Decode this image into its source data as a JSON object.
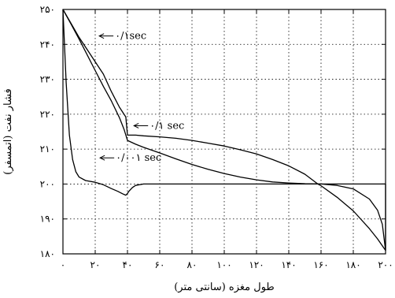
{
  "chart_data": {
    "type": "line",
    "title": "",
    "xlabel": "طول مغزه (سانتی متر)",
    "ylabel": "فشار نفت (اتمسفر)",
    "xlim": [
      0,
      200
    ],
    "ylim": [
      180,
      250
    ],
    "grid": true,
    "x_ticks": [
      0,
      20,
      40,
      60,
      80,
      100,
      120,
      140,
      160,
      180,
      200
    ],
    "x_tick_labels": [
      "۰",
      "۲۰",
      "۴۰",
      "۶۰",
      "۸۰",
      "۱۰۰",
      "۱۲۰",
      "۱۴۰",
      "۱۶۰",
      "۱۸۰",
      "۲۰۰"
    ],
    "y_ticks": [
      180,
      190,
      200,
      210,
      220,
      230,
      240,
      250
    ],
    "y_tick_labels": [
      "۱۸۰",
      "۱۹۰",
      "۲۰۰",
      "۲۱۰",
      "۲۲۰",
      "۲۳۰",
      "۲۴۰",
      "۲۵۰"
    ],
    "series": [
      {
        "name": "",
        "annotation": "۰/۰۰۱ sec",
        "color": "#000000",
        "x": [
          0,
          2,
          4,
          6,
          8,
          10,
          14,
          20,
          25,
          30,
          34,
          37,
          39,
          40,
          41,
          43,
          45,
          50,
          60,
          100,
          150,
          200
        ],
        "y": [
          250,
          229,
          214,
          207,
          203.5,
          202,
          201,
          200.5,
          199.8,
          198.7,
          197.9,
          197.2,
          196.8,
          197.3,
          198,
          199,
          199.6,
          200,
          200,
          200,
          200,
          200
        ]
      },
      {
        "name": "",
        "annotation": "۰/۱ sec",
        "color": "#000000",
        "x": [
          0,
          5,
          10,
          15,
          20,
          25,
          30,
          35,
          38,
          40,
          45,
          50,
          60,
          70,
          80,
          90,
          100,
          110,
          120,
          130,
          140,
          150,
          160,
          170,
          180,
          190,
          195,
          198,
          200
        ],
        "y": [
          250,
          245.8,
          241.5,
          237,
          232.5,
          228,
          223.8,
          219,
          215.5,
          212.5,
          211.4,
          210.5,
          208.9,
          207.2,
          205.6,
          204.2,
          203,
          202,
          201.2,
          200.6,
          200.3,
          200.1,
          200,
          199.6,
          198.6,
          195.7,
          192.5,
          188.5,
          181
        ]
      },
      {
        "name": "",
        "annotation": "۰/۱sec",
        "color": "#000000",
        "x": [
          0,
          5,
          10,
          15,
          20,
          25,
          30,
          35,
          39,
          40,
          45,
          50,
          60,
          70,
          80,
          90,
          100,
          110,
          120,
          130,
          140,
          150,
          158,
          160,
          170,
          180,
          190,
          195,
          200,
          200
        ],
        "y": [
          250,
          246,
          242,
          238.5,
          235,
          231.5,
          226.5,
          222,
          219.2,
          214,
          214,
          213.8,
          213.5,
          213.1,
          212.5,
          211.7,
          210.9,
          209.8,
          208.6,
          207,
          205.2,
          202.8,
          200,
          199.5,
          196.2,
          192.3,
          187.2,
          184.3,
          181,
          200
        ]
      }
    ],
    "annotations": [
      {
        "text": "۰/۱sec",
        "x": 22.5,
        "y": 242.4
      },
      {
        "text": "۰/۱ sec",
        "x": 44,
        "y": 216.7
      },
      {
        "text": "۰/۰۰۱ sec",
        "x": 23,
        "y": 207.5
      }
    ]
  }
}
